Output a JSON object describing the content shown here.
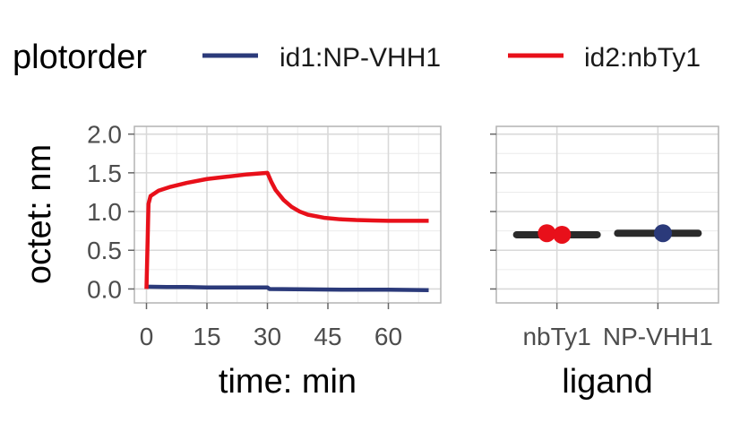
{
  "legend": {
    "title": "plotorder",
    "items": [
      {
        "label": "id1:NP-VHH1",
        "color": "#2b3a7a"
      },
      {
        "label": "id2:nbTy1",
        "color": "#e8101a"
      }
    ]
  },
  "chart_data": [
    {
      "type": "line",
      "xlabel": "time: min",
      "ylabel": "octet: nm",
      "xlim": [
        -3,
        73
      ],
      "ylim": [
        -0.18,
        2.1
      ],
      "xticks": [
        0,
        15,
        30,
        45,
        60
      ],
      "yticks": [
        0.0,
        0.5,
        1.0,
        1.5,
        2.0
      ],
      "ytick_labels": [
        "0.0",
        "0.5",
        "1.0",
        "1.5",
        "2.0"
      ],
      "grid": true,
      "series": [
        {
          "name": "id1:NP-VHH1",
          "color": "#2b3a7a",
          "x": [
            0,
            5,
            10,
            15,
            20,
            25,
            30,
            30.5,
            40,
            50,
            60,
            70
          ],
          "y": [
            0.03,
            0.025,
            0.025,
            0.02,
            0.02,
            0.02,
            0.02,
            0.0,
            -0.005,
            -0.01,
            -0.01,
            -0.015
          ]
        },
        {
          "name": "id2:nbTy1",
          "color": "#e8101a",
          "x": [
            0,
            0.5,
            1,
            3,
            6,
            10,
            15,
            20,
            25,
            30,
            31,
            32,
            34,
            36,
            38,
            40,
            44,
            48,
            52,
            56,
            60,
            65,
            70
          ],
          "y": [
            0.0,
            1.1,
            1.2,
            1.27,
            1.32,
            1.37,
            1.42,
            1.45,
            1.48,
            1.5,
            1.38,
            1.28,
            1.15,
            1.06,
            1.0,
            0.96,
            0.92,
            0.9,
            0.89,
            0.885,
            0.88,
            0.88,
            0.88
          ]
        }
      ]
    },
    {
      "type": "scatter",
      "xlabel": "ligand",
      "categories": [
        "nbTy1",
        "NP-VHH1"
      ],
      "ylim": [
        -0.18,
        2.1
      ],
      "yticks": [
        0.0,
        0.5,
        1.0,
        1.5,
        2.0
      ],
      "grid": true,
      "bars": [
        {
          "category": "nbTy1",
          "value": 0.7,
          "color": "#2a2a2a"
        },
        {
          "category": "NP-VHH1",
          "value": 0.72,
          "color": "#2a2a2a"
        }
      ],
      "points": [
        {
          "category": "nbTy1",
          "offset": -0.1,
          "value": 0.72,
          "color": "#e8101a"
        },
        {
          "category": "nbTy1",
          "offset": 0.05,
          "value": 0.7,
          "color": "#e8101a"
        },
        {
          "category": "NP-VHH1",
          "offset": 0.05,
          "value": 0.72,
          "color": "#2b3a7a"
        }
      ]
    }
  ]
}
